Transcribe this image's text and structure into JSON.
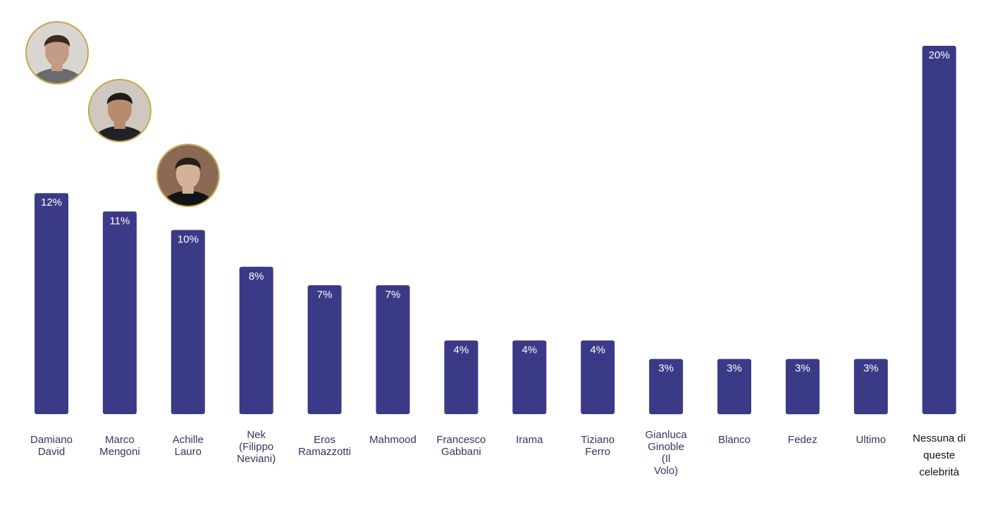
{
  "chart_data": {
    "type": "bar",
    "categories": [
      [
        "Damiano",
        "David"
      ],
      [
        "Marco",
        "Mengoni"
      ],
      [
        "Achille",
        "Lauro"
      ],
      [
        "Nek",
        "(Filippo",
        "Neviani)"
      ],
      [
        "Eros",
        "Ramazzotti"
      ],
      [
        "Mahmood"
      ],
      [
        "Francesco",
        "Gabbani"
      ],
      [
        "Irama"
      ],
      [
        "Tiziano",
        "Ferro"
      ],
      [
        "Gianluca",
        "Ginoble",
        "(Il",
        "Volo)"
      ],
      [
        "Blanco"
      ],
      [
        "Fedez"
      ],
      [
        "Ultimo"
      ],
      [
        "Nessuna di",
        "queste",
        "celebrità"
      ]
    ],
    "values": [
      12,
      11,
      10,
      8,
      7,
      7,
      4,
      4,
      4,
      3,
      3,
      3,
      3,
      20
    ],
    "value_labels": [
      "12%",
      "11%",
      "10%",
      "8%",
      "7%",
      "7%",
      "4%",
      "4%",
      "4%",
      "3%",
      "3%",
      "3%",
      "3%",
      "20%"
    ],
    "title": "",
    "xlabel": "",
    "ylabel": "",
    "ylim": [
      0,
      20
    ],
    "grid": false,
    "legend": "none",
    "colors": {
      "bar": "#3b3a87",
      "value_label": "#ffffff",
      "category_label": "#33365e",
      "last_category_label": "#111111",
      "photo_ring": "#c9a24a"
    }
  },
  "photos": [
    {
      "icon": "portrait-damiano-david-icon",
      "bar_index": 0
    },
    {
      "icon": "portrait-marco-mengoni-icon",
      "bar_index": 1
    },
    {
      "icon": "portrait-achille-lauro-icon",
      "bar_index": 2
    }
  ]
}
